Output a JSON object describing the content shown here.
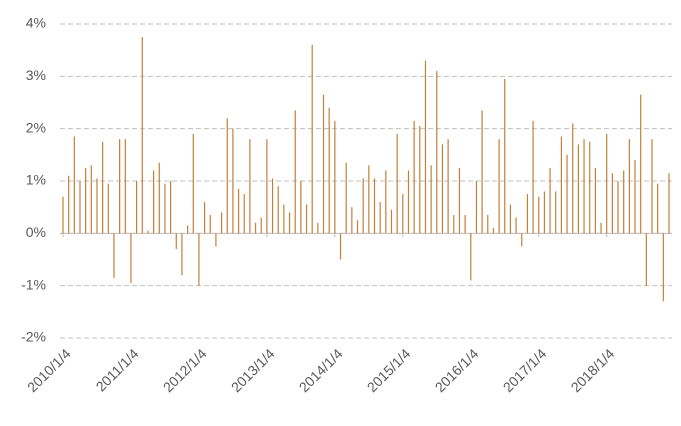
{
  "chart_data": {
    "type": "bar",
    "color": "#c47f3a",
    "grid": true,
    "ylim": [
      -2,
      4
    ],
    "yticks": [
      {
        "value": -2,
        "label": "-2%"
      },
      {
        "value": -1,
        "label": "-1%"
      },
      {
        "value": 0,
        "label": "0%"
      },
      {
        "value": 1,
        "label": "1%"
      },
      {
        "value": 2,
        "label": "2%"
      },
      {
        "value": 3,
        "label": "3%"
      },
      {
        "value": 4,
        "label": "4%"
      }
    ],
    "categories": [
      "2010/1/4",
      null,
      null,
      null,
      null,
      null,
      null,
      null,
      null,
      null,
      null,
      null,
      "2011/1/4",
      null,
      null,
      null,
      null,
      null,
      null,
      null,
      null,
      null,
      null,
      null,
      "2012/1/4",
      null,
      null,
      null,
      null,
      null,
      null,
      null,
      null,
      null,
      null,
      null,
      "2013/1/4",
      null,
      null,
      null,
      null,
      null,
      null,
      null,
      null,
      null,
      null,
      null,
      "2014/1/4",
      null,
      null,
      null,
      null,
      null,
      null,
      null,
      null,
      null,
      null,
      null,
      "2015/1/4",
      null,
      null,
      null,
      null,
      null,
      null,
      null,
      null,
      null,
      null,
      null,
      "2016/1/4",
      null,
      null,
      null,
      null,
      null,
      null,
      null,
      null,
      null,
      null,
      null,
      "2017/1/4",
      null,
      null,
      null,
      null,
      null,
      null,
      null,
      null,
      null,
      null,
      null,
      "2018/1/4",
      null,
      null,
      null,
      null,
      null,
      null,
      null,
      null,
      null,
      null,
      null
    ],
    "values": [
      0.7,
      1.1,
      1.85,
      1.0,
      1.25,
      1.3,
      1.05,
      1.75,
      0.95,
      -0.85,
      1.8,
      1.8,
      -0.95,
      1.0,
      3.75,
      0.05,
      1.2,
      1.35,
      0.95,
      1.0,
      -0.3,
      -0.8,
      0.15,
      1.9,
      -1.0,
      0.6,
      0.35,
      -0.25,
      0.4,
      2.2,
      2.0,
      0.85,
      0.75,
      1.8,
      0.2,
      0.3,
      1.8,
      1.05,
      0.9,
      0.55,
      0.4,
      2.35,
      1.0,
      0.55,
      3.6,
      0.2,
      2.65,
      2.4,
      2.15,
      -0.5,
      1.35,
      0.5,
      0.25,
      1.05,
      1.3,
      1.05,
      0.6,
      1.2,
      0.45,
      1.9,
      0.75,
      1.2,
      2.15,
      2.05,
      3.3,
      1.3,
      3.1,
      1.7,
      1.8,
      0.35,
      1.25,
      0.35,
      -0.9,
      1.0,
      2.35,
      0.35,
      0.1,
      1.8,
      2.95,
      0.55,
      0.3,
      -0.25,
      0.75,
      2.15,
      0.7,
      0.8,
      1.25,
      0.8,
      1.85,
      1.5,
      2.1,
      1.7,
      1.8,
      1.75,
      1.25,
      0.2,
      1.9,
      1.15,
      1.0,
      1.2,
      1.8,
      1.4,
      2.65,
      -1.0,
      1.8,
      0.95,
      -1.3,
      1.15
    ]
  }
}
